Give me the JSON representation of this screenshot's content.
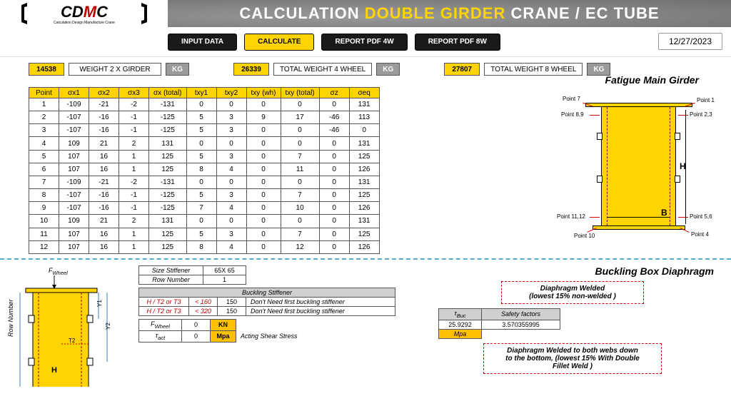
{
  "header": {
    "title_pre": "CALCULATION ",
    "title_accent": "DOUBLE GIRDER",
    "title_post": "  CRANE / EC TUBE",
    "logo_sub": "Calculation Design Manufacture Crane"
  },
  "toolbar": {
    "input_data": "INPUT DATA",
    "calculate": "CALCULATE",
    "report4w": "REPORT PDF 4W",
    "report8w": "REPORT PDF 8W",
    "date": "12/27/2023"
  },
  "weights": {
    "w2g_val": "14538",
    "w2g_label": "WEIGHT 2 X GIRDER",
    "tw4_val": "26339",
    "tw4_label": "TOTAL WEIGHT 4 WHEEL",
    "tw8_val": "27807",
    "tw8_label": "TOTAL WEIGHT 8 WHEEL",
    "kg": "KG"
  },
  "section1_title": "Fatigue Main Girder",
  "fatigue_table": {
    "headers": [
      "Point",
      "σx1",
      "σx2",
      "σx3",
      "σx (total)",
      "txy1",
      "txy2",
      "txy (wh)",
      "txy (total)",
      "σz",
      "σeq"
    ],
    "rows": [
      [
        "1",
        "-109",
        "-21",
        "-2",
        "-131",
        "0",
        "0",
        "0",
        "0",
        "0",
        "131"
      ],
      [
        "2",
        "-107",
        "-16",
        "-1",
        "-125",
        "5",
        "3",
        "9",
        "17",
        "-46",
        "113"
      ],
      [
        "3",
        "-107",
        "-16",
        "-1",
        "-125",
        "5",
        "3",
        "0",
        "0",
        "-46",
        "0"
      ],
      [
        "4",
        "109",
        "21",
        "2",
        "131",
        "0",
        "0",
        "0",
        "0",
        "0",
        "131"
      ],
      [
        "5",
        "107",
        "16",
        "1",
        "125",
        "5",
        "3",
        "0",
        "7",
        "0",
        "125"
      ],
      [
        "6",
        "107",
        "16",
        "1",
        "125",
        "8",
        "4",
        "0",
        "11",
        "0",
        "126"
      ],
      [
        "7",
        "-109",
        "-21",
        "-2",
        "-131",
        "0",
        "0",
        "0",
        "0",
        "0",
        "131"
      ],
      [
        "8",
        "-107",
        "-16",
        "-1",
        "-125",
        "5",
        "3",
        "0",
        "7",
        "0",
        "125"
      ],
      [
        "9",
        "-107",
        "-16",
        "-1",
        "-125",
        "7",
        "4",
        "0",
        "10",
        "0",
        "126"
      ],
      [
        "10",
        "109",
        "21",
        "2",
        "131",
        "0",
        "0",
        "0",
        "0",
        "0",
        "131"
      ],
      [
        "11",
        "107",
        "16",
        "1",
        "125",
        "5",
        "3",
        "0",
        "7",
        "0",
        "125"
      ],
      [
        "12",
        "107",
        "16",
        "1",
        "125",
        "8",
        "4",
        "0",
        "12",
        "0",
        "126"
      ]
    ]
  },
  "girder_diagram": {
    "H": "H",
    "B": "B",
    "points": {
      "p1": "Point 1",
      "p23": "Point 2,3",
      "p4": "Point 4",
      "p56": "Point 5,6",
      "p7": "Point 7",
      "p89": "Point 8,9",
      "p10": "Point 10",
      "p1112": "Point 11,12"
    }
  },
  "section2_title": "Buckling Box Diaphragm",
  "stiffener": {
    "size_label": "Size Stiffener",
    "size_val": "65X 65",
    "row_label": "Row Number",
    "row_val": "1",
    "buckling_header": "Buckling Stiffener",
    "cond1_lhs": "H / T2 or T3",
    "cond1_op": "< 160",
    "cond1_val": "150",
    "cond1_msg": "Don't Need first buckling stiffener",
    "cond2_lhs": "H / T2 or T3",
    "cond2_op": "< 320",
    "cond2_val": "150",
    "cond2_msg": "Don't Need first buckling stiffener",
    "fwheel_label": "F",
    "fwheel_sub": "Wheel",
    "fwheel_val": "0",
    "fwheel_unit": "KN",
    "tau_label": "τ",
    "tau_sub": "act",
    "tau_val": "0",
    "tau_unit": "Mpa",
    "tau_desc": "Acting Shear Stress"
  },
  "diaphragm": {
    "welded_line1": "Diaphragm Welded",
    "welded_line2": "(lowest 15% non-welded )",
    "tau_buc": "τ",
    "tau_buc_sub": "Buc",
    "sf_label": "Safety factors",
    "tau_buc_val": "25.9292",
    "sf_val": "3.570355995",
    "mpa": "Mpa",
    "welded2_line1": "Diaphragm Welded to both webs down",
    "welded2_line2": "to the bottom,  (lowest 15% With Double",
    "welded2_line3": "Fillet Weld )"
  },
  "sec2_diagram": {
    "fwheel": "F",
    "fwheel_sub": "Wheel",
    "Y1": "Y1",
    "Y2": "Y2",
    "T2": "T2",
    "H": "H",
    "row_number": "Row Number"
  }
}
